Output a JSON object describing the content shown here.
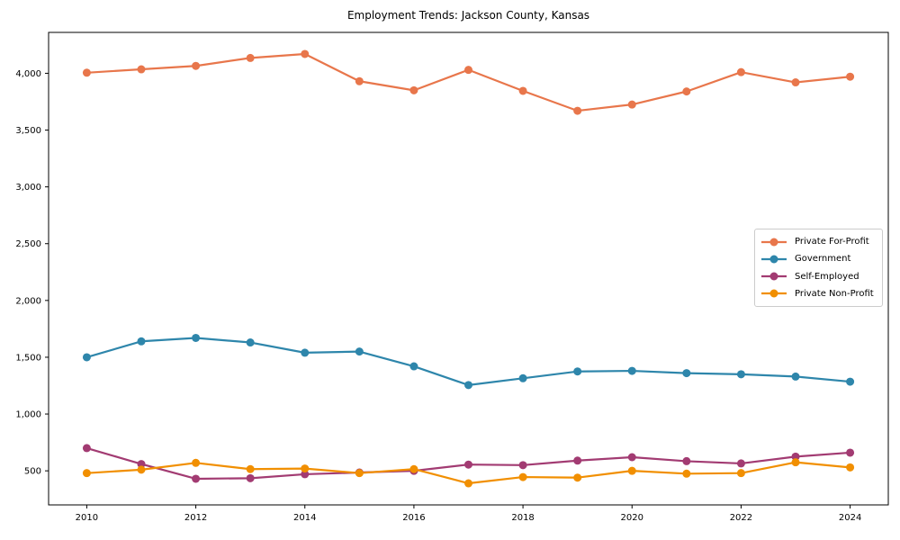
{
  "title": "Employment Trends: Jackson County, Kansas",
  "chart_data": {
    "type": "line",
    "title": "Employment Trends: Jackson County, Kansas",
    "xlabel": "",
    "ylabel": "",
    "grid": false,
    "legend_position": "center right",
    "xlim": [
      2009.3,
      2024.7
    ],
    "ylim": [
      200,
      4360
    ],
    "x": [
      2010,
      2011,
      2012,
      2013,
      2014,
      2015,
      2016,
      2017,
      2018,
      2019,
      2020,
      2021,
      2022,
      2023,
      2024
    ],
    "series": [
      {
        "name": "Private For-Profit",
        "color": "#E8764B",
        "values": [
          4005,
          4035,
          4065,
          4135,
          4170,
          3930,
          3850,
          4030,
          3845,
          3670,
          3725,
          3840,
          4010,
          3920,
          3970
        ]
      },
      {
        "name": "Government",
        "color": "#2E86AB",
        "values": [
          1500,
          1640,
          1670,
          1630,
          1540,
          1550,
          1420,
          1255,
          1315,
          1375,
          1380,
          1360,
          1350,
          1330,
          1285
        ]
      },
      {
        "name": "Self-Employed",
        "color": "#A23B72",
        "values": [
          700,
          560,
          430,
          435,
          470,
          485,
          500,
          555,
          550,
          590,
          620,
          585,
          565,
          625,
          660
        ]
      },
      {
        "name": "Private Non-Profit",
        "color": "#F18F01",
        "values": [
          480,
          510,
          570,
          515,
          520,
          480,
          515,
          390,
          445,
          440,
          500,
          475,
          480,
          575,
          530
        ]
      }
    ],
    "x_ticks": [
      {
        "v": 2010,
        "label": "2010"
      },
      {
        "v": 2012,
        "label": "2012"
      },
      {
        "v": 2014,
        "label": "2014"
      },
      {
        "v": 2016,
        "label": "2016"
      },
      {
        "v": 2018,
        "label": "2018"
      },
      {
        "v": 2020,
        "label": "2020"
      },
      {
        "v": 2022,
        "label": "2022"
      },
      {
        "v": 2024,
        "label": "2024"
      }
    ],
    "y_ticks": [
      {
        "v": 500,
        "label": "500"
      },
      {
        "v": 1000,
        "label": "1,000"
      },
      {
        "v": 1500,
        "label": "1,500"
      },
      {
        "v": 2000,
        "label": "2,000"
      },
      {
        "v": 2500,
        "label": "2,500"
      },
      {
        "v": 3000,
        "label": "3,000"
      },
      {
        "v": 3500,
        "label": "3,500"
      },
      {
        "v": 4000,
        "label": "4,000"
      }
    ]
  }
}
